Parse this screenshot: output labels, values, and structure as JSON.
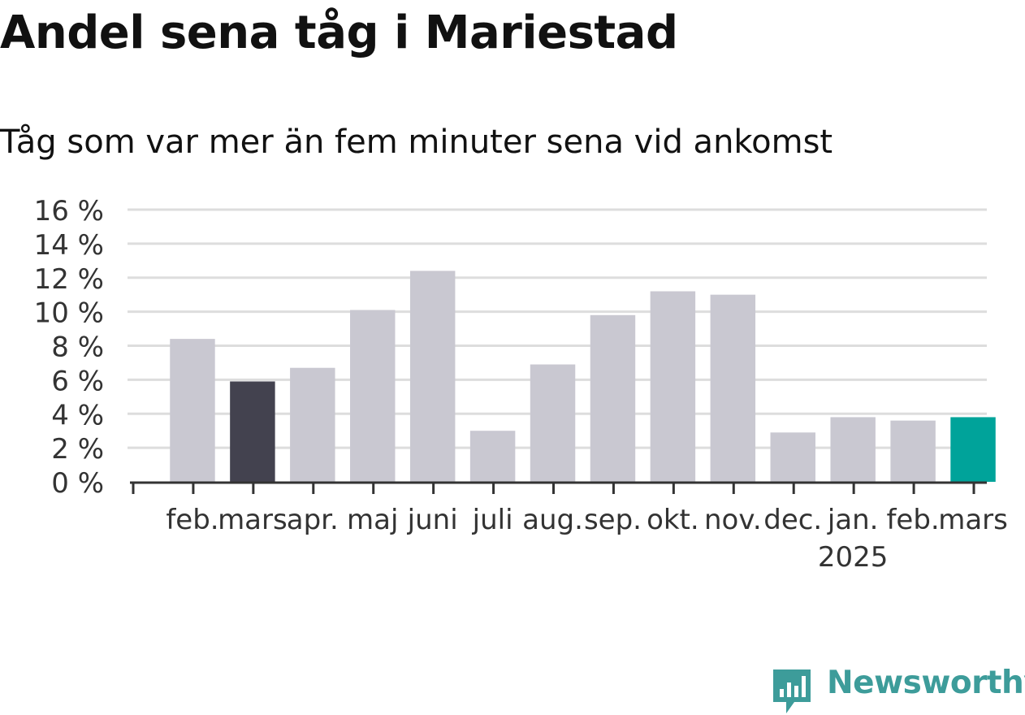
{
  "header": {
    "title": "Andel sena tåg i Mariestad",
    "subtitle": "Tåg som var mer än fem minuter sena vid ankomst"
  },
  "brand": {
    "name": "Newsworthy",
    "icon": "bar-chart-badge-icon",
    "color": "#3d9c9a"
  },
  "colors": {
    "bar_default": "#c9c8d1",
    "bar_highlight_dark": "#43424f",
    "bar_highlight_current": "#00a39a",
    "grid": "#dddddd",
    "axis": "#333333"
  },
  "chart_data": {
    "type": "bar",
    "title": "Andel sena tåg i Mariestad",
    "subtitle": "Tåg som var mer än fem minuter sena vid ankomst",
    "xlabel": "",
    "ylabel": "",
    "ylim": [
      0,
      16
    ],
    "yticks": [
      "0 %",
      "2 %",
      "4 %",
      "6 %",
      "8 %",
      "10 %",
      "12 %",
      "14 %",
      "16 %"
    ],
    "ytick_values": [
      0,
      2,
      4,
      6,
      8,
      10,
      12,
      14,
      16
    ],
    "categories": [
      "feb.",
      "mars",
      "apr.",
      "maj",
      "juni",
      "juli",
      "aug.",
      "sep.",
      "okt.",
      "nov.",
      "dec.",
      "jan.",
      "feb.",
      "mars"
    ],
    "year_labels": [
      {
        "category_index": 11,
        "label": "2025"
      }
    ],
    "values": [
      8.4,
      5.9,
      6.7,
      10.1,
      12.4,
      3.0,
      6.9,
      9.8,
      11.2,
      11.0,
      2.9,
      3.8,
      3.6,
      3.8
    ],
    "highlight": {
      "1": "dark",
      "13": "current"
    },
    "grid": true,
    "legend": "none"
  }
}
